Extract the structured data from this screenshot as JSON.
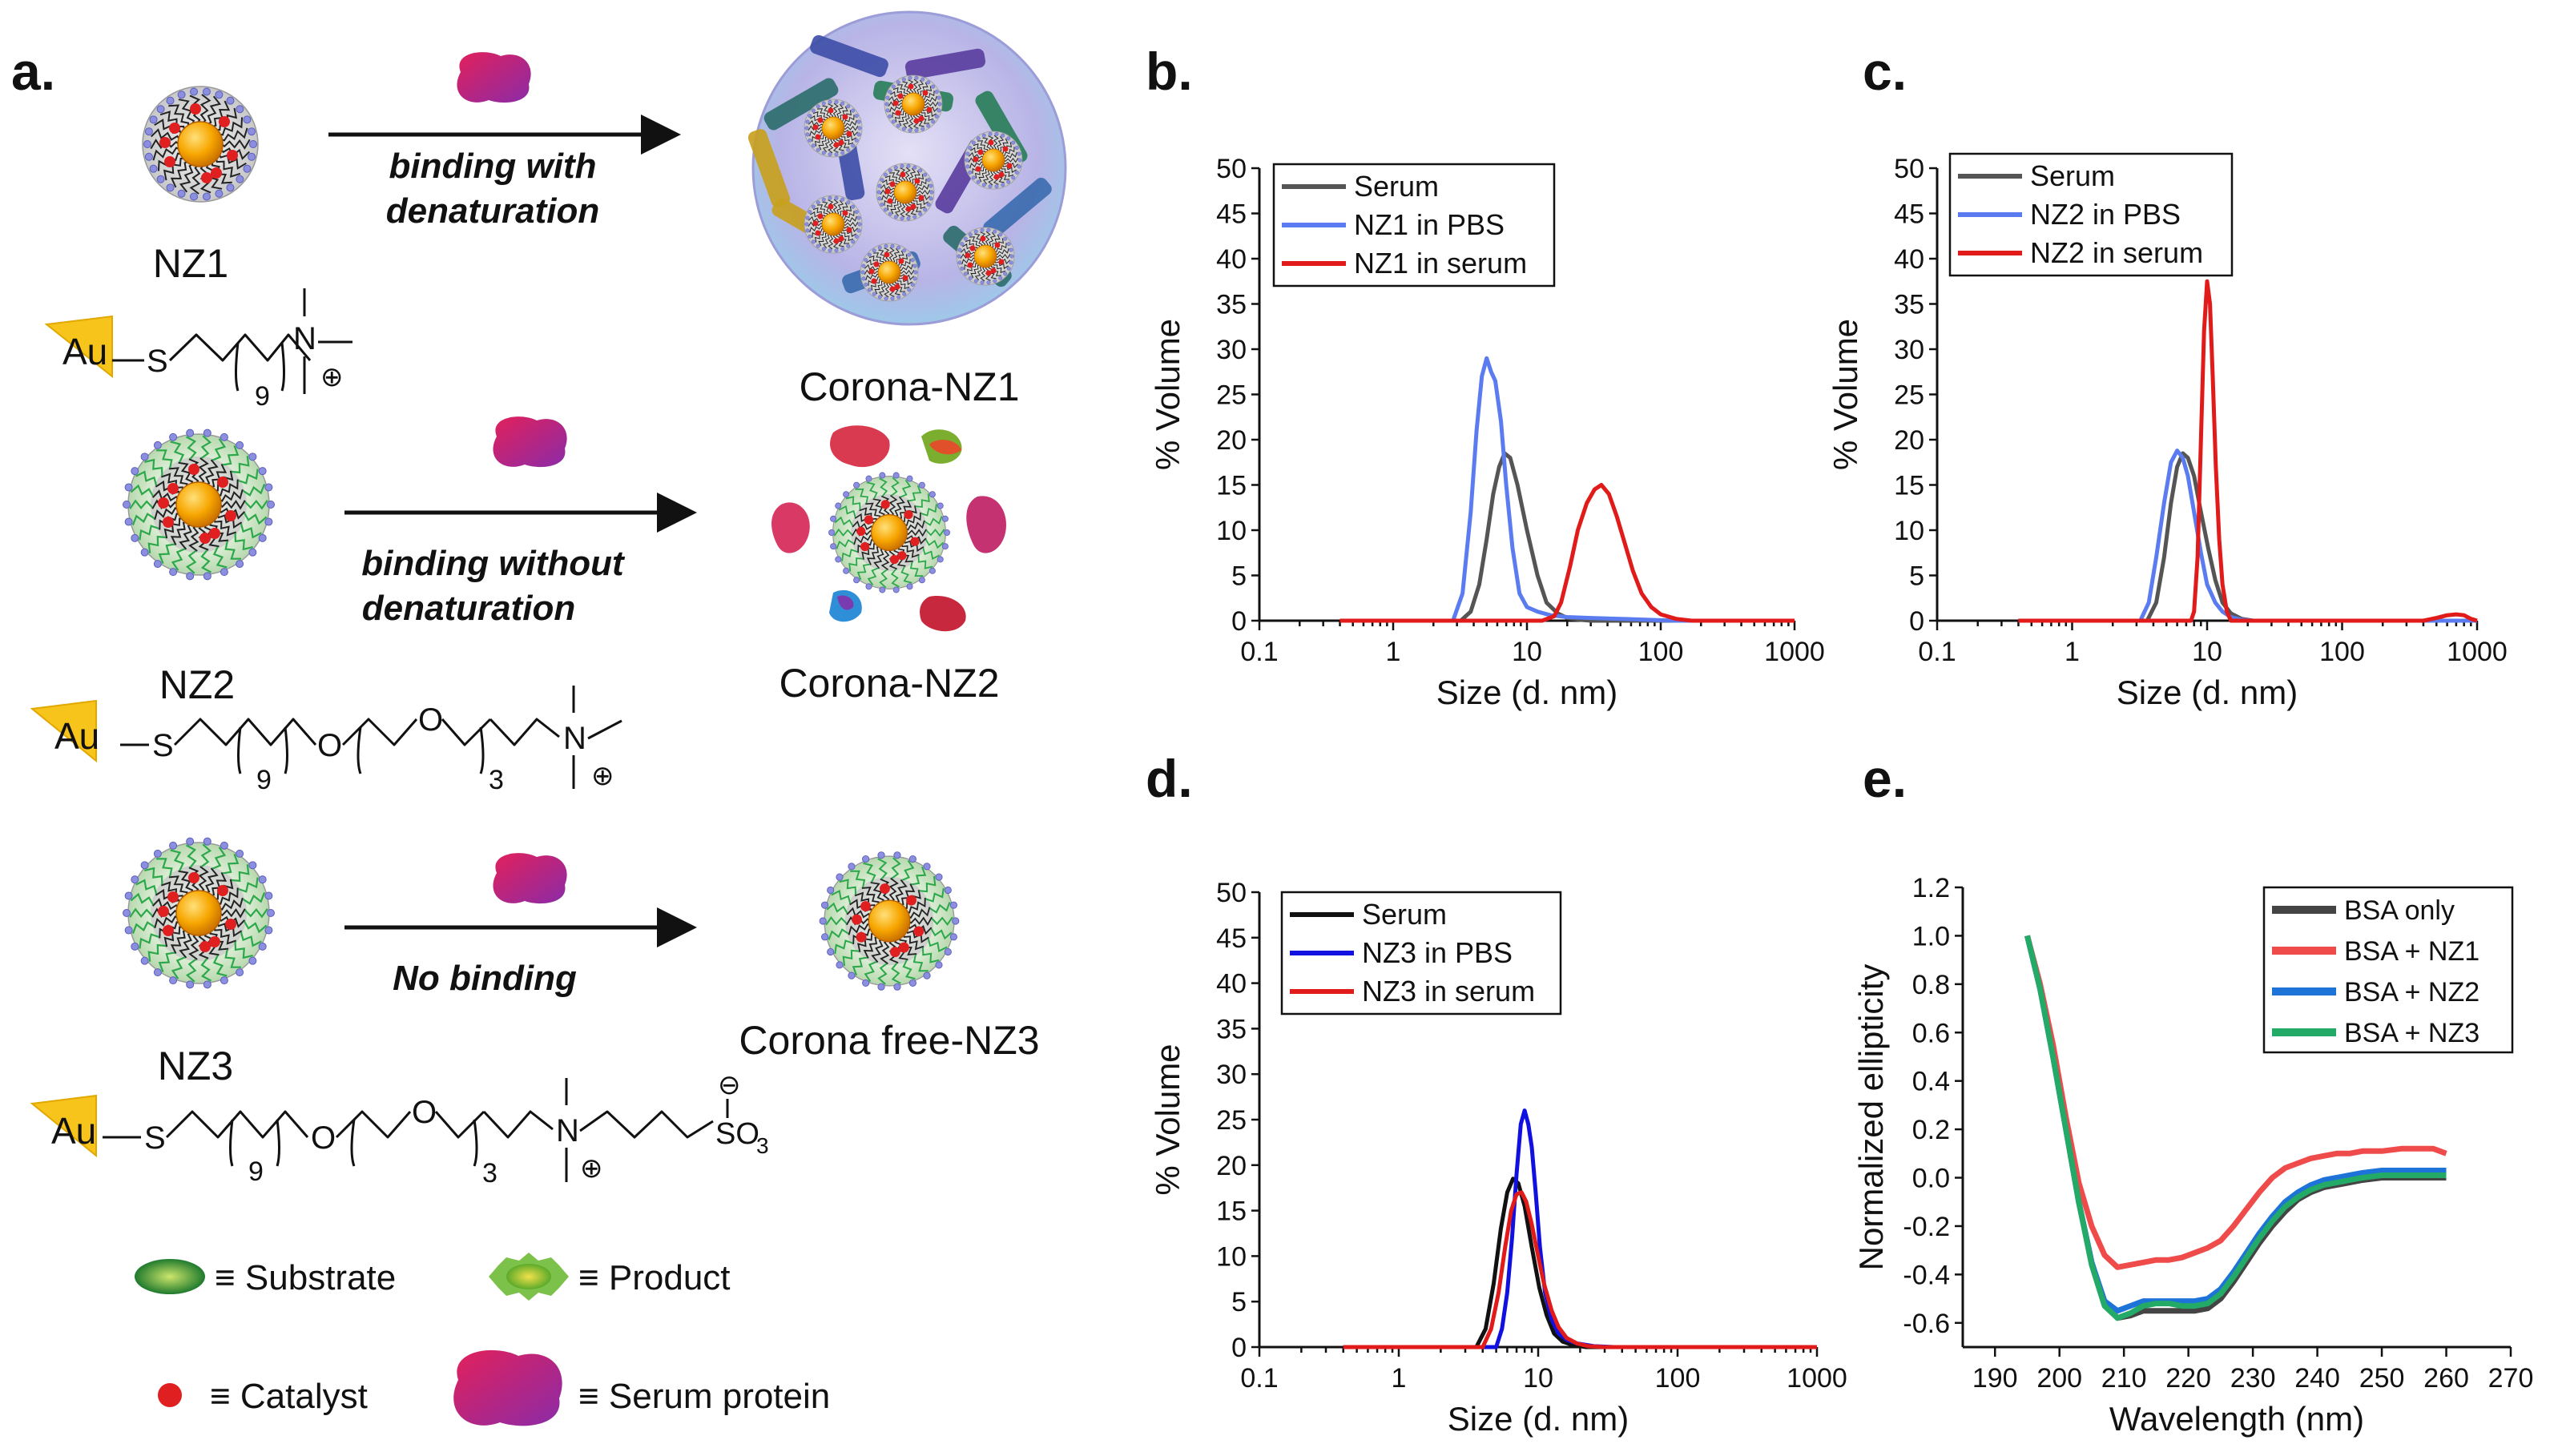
{
  "panel_a": {
    "label": "a.",
    "rows": [
      {
        "np_name": "NZ1",
        "arrow_text": [
          "binding with",
          "denaturation"
        ],
        "result_name": "Corona-NZ1"
      },
      {
        "np_name": "NZ2",
        "arrow_text": [
          "binding without",
          "denaturation"
        ],
        "result_name": "Corona-NZ2"
      },
      {
        "np_name": "NZ3",
        "arrow_text": [
          "No binding"
        ],
        "result_name": "Corona free-NZ3"
      }
    ],
    "chem": {
      "au": "Au",
      "s": "S",
      "o": "O",
      "so3": "SO",
      "so3_sub": "3",
      "sub9": "9",
      "sub3": "3",
      "plus": "⊕",
      "minus": "⊖",
      "n": "N"
    },
    "legend": {
      "substrate": "≡ Substrate",
      "product": "≡ Product",
      "catalyst": "≡ Catalyst",
      "serum_protein": "≡ Serum protein"
    }
  },
  "colors": {
    "gold": "#F7A600",
    "shell_green": "#2BA84A",
    "ligand_blue": "#7B7FD6",
    "catalyst_red": "#E02020",
    "protein_start": "#E3205A",
    "protein_end": "#8A2BA8",
    "corona_sphere": "#B6B8E8",
    "serum": "#555555",
    "pbs": "#5B7CF0",
    "in_serum": "#E11A1A",
    "nz3_serum": "#111111",
    "nz3_pbs": "#1010E0",
    "bsa_only": "#444444",
    "bsa_nz1": "#F04B4B",
    "bsa_nz2": "#1E73D8",
    "bsa_nz3": "#22AA66"
  },
  "chart_data": [
    {
      "id": "b",
      "label": "b.",
      "type": "line",
      "xscale": "log",
      "xlim": [
        0.1,
        1000
      ],
      "ylim": [
        0,
        50
      ],
      "xlabel": "Size (d. nm)",
      "ylabel": "% Volume",
      "xticks": [
        "0.1",
        "1",
        "10",
        "100",
        "1000"
      ],
      "yticks": [
        "0",
        "5",
        "10",
        "15",
        "20",
        "25",
        "30",
        "35",
        "40",
        "45",
        "50"
      ],
      "legend": [
        "Serum",
        "NZ1 in PBS",
        "NZ1 in serum"
      ],
      "series": [
        {
          "name": "Serum",
          "color": "#555555",
          "x": [
            0.4,
            3.2,
            3.8,
            4.4,
            5.0,
            5.6,
            6.2,
            6.8,
            7.5,
            8.5,
            10,
            12,
            14,
            17,
            20,
            25,
            30,
            1100
          ],
          "y": [
            0,
            0,
            1,
            4,
            9,
            14,
            17,
            18.5,
            18,
            15,
            10,
            5,
            2,
            0.8,
            0.3,
            0.1,
            0,
            0
          ]
        },
        {
          "name": "NZ1 in PBS",
          "color": "#5B7CF0",
          "x": [
            0.4,
            2.8,
            3.3,
            3.8,
            4.2,
            4.6,
            5.0,
            5.4,
            5.8,
            6.4,
            7.0,
            7.8,
            8.8,
            10,
            12,
            15,
            20,
            30,
            50,
            80,
            130,
            1100
          ],
          "y": [
            0,
            0,
            3,
            12,
            21,
            27,
            29,
            27.5,
            26.5,
            22,
            15,
            8,
            3,
            1.5,
            1,
            0.6,
            0.4,
            0.3,
            0.2,
            0.1,
            0,
            0
          ]
        },
        {
          "name": "NZ1 in serum",
          "color": "#E11A1A",
          "x": [
            0.4,
            13,
            16,
            18,
            21,
            24,
            28,
            32,
            36,
            41,
            47,
            54,
            62,
            72,
            85,
            100,
            130,
            170,
            1100
          ],
          "y": [
            0,
            0,
            0.5,
            2,
            6,
            10,
            13,
            14.5,
            15,
            14,
            11.5,
            8.5,
            5.5,
            3,
            1.5,
            0.7,
            0.2,
            0,
            0
          ]
        }
      ]
    },
    {
      "id": "c",
      "label": "c.",
      "type": "line",
      "xscale": "log",
      "xlim": [
        0.1,
        1000
      ],
      "ylim": [
        0,
        50
      ],
      "xlabel": "Size (d. nm)",
      "ylabel": "% Volume",
      "xticks": [
        "0.1",
        "1",
        "10",
        "100",
        "1000"
      ],
      "yticks": [
        "0",
        "5",
        "10",
        "15",
        "20",
        "25",
        "30",
        "35",
        "40",
        "45",
        "50"
      ],
      "legend": [
        "Serum",
        "NZ2 in PBS",
        "NZ2 in serum"
      ],
      "series": [
        {
          "name": "Serum",
          "color": "#555555",
          "x": [
            0.4,
            3.6,
            4.2,
            4.8,
            5.4,
            6.0,
            6.6,
            7.2,
            8.0,
            9.0,
            10.2,
            11.5,
            13,
            15,
            18,
            22,
            1100
          ],
          "y": [
            0,
            0,
            2,
            7,
            13,
            17,
            18.5,
            18,
            16,
            12,
            8,
            4.5,
            2,
            0.8,
            0.2,
            0,
            0
          ]
        },
        {
          "name": "NZ2 in PBS",
          "color": "#5B7CF0",
          "x": [
            0.4,
            3.2,
            3.7,
            4.2,
            4.8,
            5.4,
            6.0,
            6.6,
            7.2,
            8.0,
            9.0,
            10,
            11.5,
            13,
            15,
            18,
            22,
            1100
          ],
          "y": [
            0,
            0,
            2,
            7,
            13,
            17.5,
            18.8,
            18,
            16,
            12,
            7.5,
            4,
            2,
            1,
            0.4,
            0.1,
            0,
            0
          ]
        },
        {
          "name": "NZ2 in serum",
          "color": "#E11A1A",
          "x": [
            0.4,
            7.6,
            8.0,
            8.5,
            9.0,
            9.5,
            10.0,
            10.5,
            11.0,
            11.6,
            12.3,
            13.0,
            14,
            15,
            400,
            500,
            600,
            700,
            800,
            900,
            1100
          ],
          "y": [
            0,
            0,
            1,
            7,
            20,
            32,
            37.5,
            35,
            27,
            17,
            9,
            4,
            1,
            0,
            0,
            0.3,
            0.6,
            0.7,
            0.6,
            0.2,
            0
          ]
        }
      ]
    },
    {
      "id": "d",
      "label": "d.",
      "type": "line",
      "xscale": "log",
      "xlim": [
        0.1,
        1000
      ],
      "ylim": [
        0,
        50
      ],
      "xlabel": "Size (d. nm)",
      "ylabel": "% Volume",
      "xticks": [
        "0.1",
        "1",
        "10",
        "100",
        "1000"
      ],
      "yticks": [
        "0",
        "5",
        "10",
        "15",
        "20",
        "25",
        "30",
        "35",
        "40",
        "45",
        "50"
      ],
      "legend": [
        "Serum",
        "NZ3 in PBS",
        "NZ3 in serum"
      ],
      "series": [
        {
          "name": "Serum",
          "color": "#111111",
          "x": [
            0.4,
            3.6,
            4.2,
            4.8,
            5.4,
            6.0,
            6.6,
            7.2,
            8.0,
            9.0,
            10.2,
            11.5,
            13,
            15,
            18,
            22,
            1100
          ],
          "y": [
            0,
            0,
            2,
            7,
            13,
            17,
            18.5,
            18,
            15.5,
            11,
            6.5,
            3.5,
            1.5,
            0.6,
            0.2,
            0,
            0
          ]
        },
        {
          "name": "NZ3 in PBS",
          "color": "#1010E0",
          "x": [
            0.4,
            5.0,
            5.5,
            6.0,
            6.5,
            7.0,
            7.5,
            8.0,
            8.5,
            9.0,
            9.6,
            10.3,
            11.2,
            12.5,
            14,
            16,
            19,
            25,
            35,
            1100
          ],
          "y": [
            0,
            0,
            2,
            6,
            12,
            19,
            24.5,
            26,
            24.5,
            22,
            17,
            11,
            6,
            3,
            1.5,
            0.8,
            0.4,
            0.1,
            0,
            0
          ]
        },
        {
          "name": "NZ3 in serum",
          "color": "#E11A1A",
          "x": [
            0.4,
            4.0,
            4.6,
            5.2,
            5.8,
            6.4,
            7.0,
            7.6,
            8.2,
            9.0,
            10,
            11,
            12.5,
            14,
            16,
            19,
            23,
            30,
            1100
          ],
          "y": [
            0,
            0,
            2,
            6,
            11,
            15,
            16.8,
            17,
            16,
            13.5,
            10,
            7,
            4,
            2.2,
            1,
            0.4,
            0.1,
            0,
            0
          ]
        }
      ]
    },
    {
      "id": "e",
      "label": "e.",
      "type": "line",
      "xscale": "linear",
      "xlim": [
        185,
        270
      ],
      "ylim": [
        -0.7,
        1.2
      ],
      "xlabel": "Wavelength (nm)",
      "ylabel": "Normalized ellipticity",
      "xticks": [
        "190",
        "200",
        "210",
        "220",
        "230",
        "240",
        "250",
        "260",
        "270"
      ],
      "yticks": [
        "-0.6",
        "-0.4",
        "-0.2",
        "0.0",
        "0.2",
        "0.4",
        "0.6",
        "0.8",
        "1.0",
        "1.2"
      ],
      "legend": [
        "BSA only",
        "BSA + NZ1",
        "BSA + NZ2",
        "BSA + NZ3"
      ],
      "series": [
        {
          "name": "BSA only",
          "color": "#444444",
          "x": [
            195,
            197,
            199,
            201,
            203,
            205,
            207,
            209,
            211,
            213,
            215,
            217,
            219,
            221,
            223,
            225,
            227,
            229,
            231,
            233,
            235,
            237,
            239,
            241,
            243,
            245,
            247,
            250,
            253,
            256,
            258,
            260
          ],
          "y": [
            1.0,
            0.78,
            0.5,
            0.2,
            -0.1,
            -0.35,
            -0.52,
            -0.58,
            -0.57,
            -0.55,
            -0.55,
            -0.55,
            -0.55,
            -0.55,
            -0.54,
            -0.5,
            -0.43,
            -0.35,
            -0.27,
            -0.2,
            -0.14,
            -0.09,
            -0.06,
            -0.04,
            -0.03,
            -0.02,
            -0.01,
            0.0,
            0.0,
            0.0,
            0.0,
            0.0
          ]
        },
        {
          "name": "BSA + NZ1",
          "color": "#F04B4B",
          "x": [
            195,
            197,
            199,
            201,
            203,
            205,
            207,
            209,
            211,
            213,
            215,
            217,
            219,
            221,
            223,
            225,
            227,
            229,
            231,
            233,
            235,
            237,
            239,
            241,
            243,
            245,
            247,
            250,
            253,
            256,
            258,
            260
          ],
          "y": [
            1.0,
            0.8,
            0.55,
            0.25,
            -0.02,
            -0.2,
            -0.32,
            -0.37,
            -0.36,
            -0.35,
            -0.34,
            -0.34,
            -0.33,
            -0.31,
            -0.29,
            -0.26,
            -0.2,
            -0.13,
            -0.06,
            0.0,
            0.04,
            0.06,
            0.08,
            0.09,
            0.1,
            0.1,
            0.11,
            0.11,
            0.12,
            0.12,
            0.12,
            0.1
          ]
        },
        {
          "name": "BSA + NZ2",
          "color": "#1E73D8",
          "x": [
            195,
            197,
            199,
            201,
            203,
            205,
            207,
            209,
            211,
            213,
            215,
            217,
            219,
            221,
            223,
            225,
            227,
            229,
            231,
            233,
            235,
            237,
            239,
            241,
            243,
            245,
            247,
            250,
            253,
            256,
            258,
            260
          ],
          "y": [
            1.0,
            0.78,
            0.5,
            0.2,
            -0.1,
            -0.35,
            -0.51,
            -0.55,
            -0.53,
            -0.51,
            -0.51,
            -0.51,
            -0.51,
            -0.51,
            -0.5,
            -0.46,
            -0.39,
            -0.31,
            -0.23,
            -0.16,
            -0.1,
            -0.06,
            -0.03,
            -0.01,
            0.0,
            0.01,
            0.02,
            0.03,
            0.03,
            0.03,
            0.03,
            0.03
          ]
        },
        {
          "name": "BSA + NZ3",
          "color": "#22AA66",
          "x": [
            195,
            197,
            199,
            201,
            203,
            205,
            207,
            209,
            211,
            213,
            215,
            217,
            219,
            221,
            223,
            225,
            227,
            229,
            231,
            233,
            235,
            237,
            239,
            241,
            243,
            245,
            247,
            250,
            253,
            256,
            258,
            260
          ],
          "y": [
            1.0,
            0.78,
            0.5,
            0.2,
            -0.1,
            -0.36,
            -0.53,
            -0.58,
            -0.56,
            -0.53,
            -0.52,
            -0.52,
            -0.53,
            -0.53,
            -0.52,
            -0.48,
            -0.41,
            -0.33,
            -0.25,
            -0.18,
            -0.12,
            -0.08,
            -0.05,
            -0.03,
            -0.02,
            -0.01,
            0.0,
            0.01,
            0.01,
            0.01,
            0.01,
            0.01
          ]
        }
      ]
    }
  ]
}
